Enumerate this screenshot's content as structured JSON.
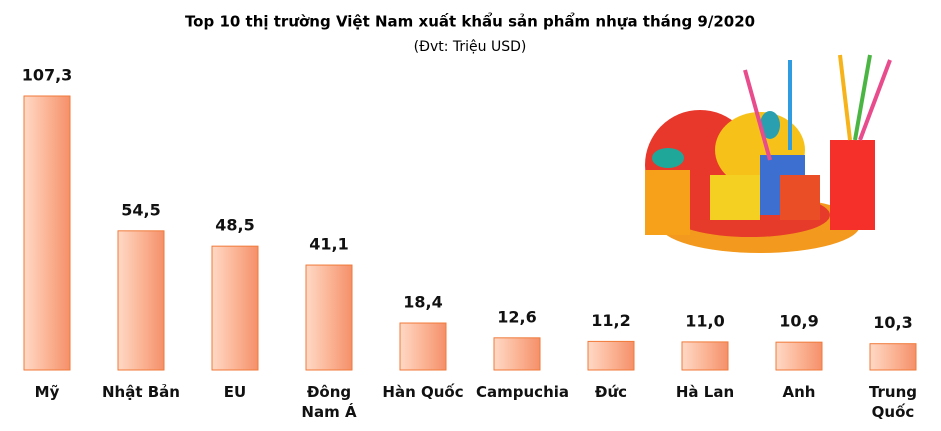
{
  "chart_data": {
    "type": "bar",
    "title": "Top 10 thị trường Việt Nam xuất khẩu sản phẩm nhựa tháng 9/2020",
    "subtitle": "(Đvt: Triệu USD)",
    "categories": [
      "Mỹ",
      "Nhật Bản",
      "EU",
      "Đông Nam Á",
      "Hàn Quốc",
      "Campuchia",
      "Đức",
      "Hà Lan",
      "Anh",
      "Trung Quốc"
    ],
    "values": [
      107.3,
      54.5,
      48.5,
      41.1,
      18.4,
      12.6,
      11.2,
      11.0,
      10.9,
      10.3
    ],
    "value_labels": [
      "107,3",
      "54,5",
      "48,5",
      "41,1",
      "18,4",
      "12,6",
      "11,2",
      "11,0",
      "10,9",
      "10,3"
    ],
    "color": "#f4a07a"
  }
}
